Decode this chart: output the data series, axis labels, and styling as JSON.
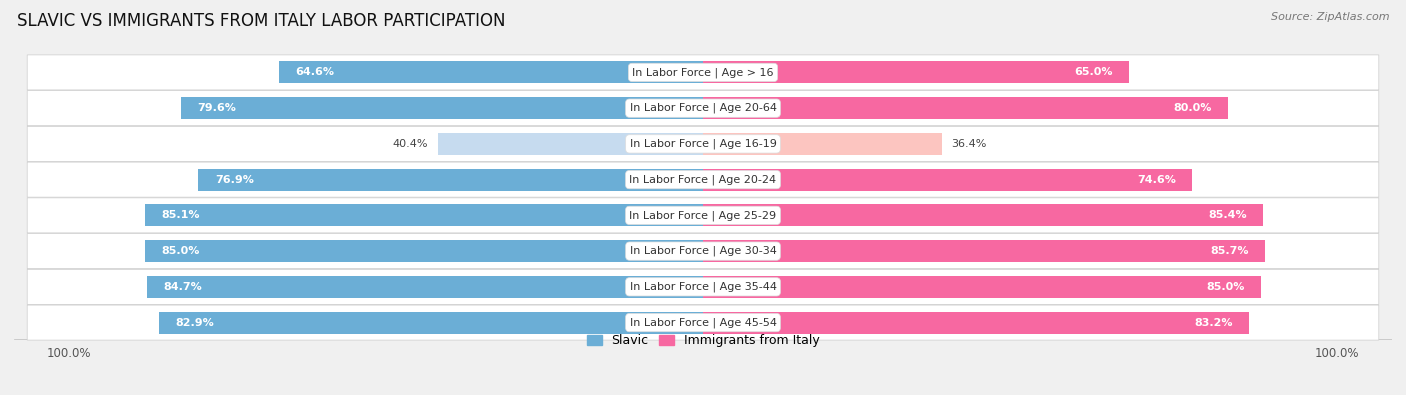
{
  "title": "SLAVIC VS IMMIGRANTS FROM ITALY LABOR PARTICIPATION",
  "source": "Source: ZipAtlas.com",
  "categories": [
    "In Labor Force | Age > 16",
    "In Labor Force | Age 20-64",
    "In Labor Force | Age 16-19",
    "In Labor Force | Age 20-24",
    "In Labor Force | Age 25-29",
    "In Labor Force | Age 30-34",
    "In Labor Force | Age 35-44",
    "In Labor Force | Age 45-54"
  ],
  "slavic_values": [
    64.6,
    79.6,
    40.4,
    76.9,
    85.1,
    85.0,
    84.7,
    82.9
  ],
  "italy_values": [
    65.0,
    80.0,
    36.4,
    74.6,
    85.4,
    85.7,
    85.0,
    83.2
  ],
  "slavic_color": "#6baed6",
  "slavic_color_light": "#c6dbef",
  "italy_color": "#f768a1",
  "italy_color_light": "#fcc5c0",
  "bar_height": 0.62,
  "background_color": "#f0f0f0",
  "row_bg_color": "#e8e8e8",
  "title_fontsize": 12,
  "label_fontsize": 8,
  "value_fontsize": 8,
  "axis_label_fontsize": 8.5,
  "legend_fontsize": 9,
  "x_left_label": "100.0%",
  "x_right_label": "100.0%",
  "small_threshold": 55
}
